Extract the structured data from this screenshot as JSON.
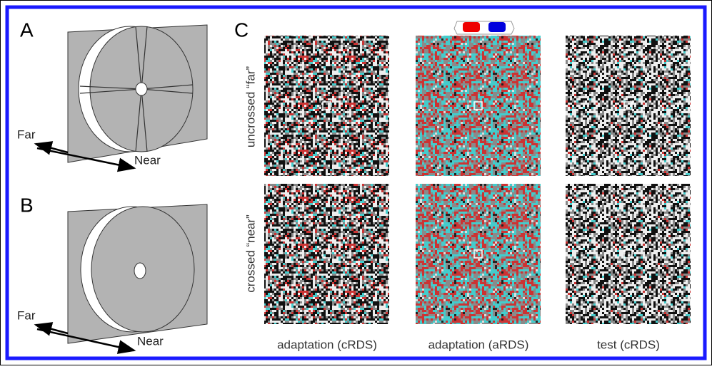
{
  "panels": {
    "A": {
      "label": "A",
      "far": "Far",
      "near": "Near"
    },
    "B": {
      "label": "B",
      "far": "Far",
      "near": "Near"
    },
    "C": {
      "label": "C",
      "rows": [
        "uncrossed “far”",
        "crossed “near”"
      ],
      "columns": [
        "adaptation (cRDS)",
        "adaptation (aRDS)",
        "test (cRDS)"
      ]
    }
  }
}
